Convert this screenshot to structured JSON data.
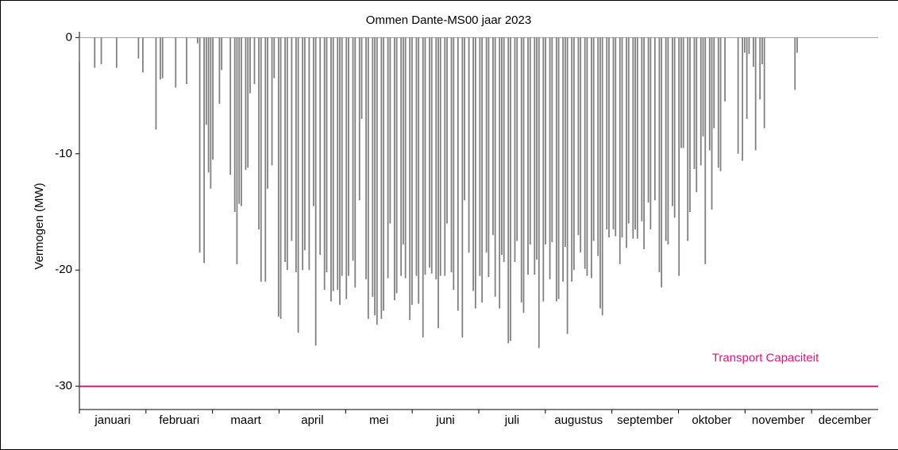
{
  "chart_data": {
    "type": "spikes",
    "title": "Ommen Dante-MS00 jaar 2023",
    "y_label": "Vermogen (MW)",
    "categories": [
      "januari",
      "februari",
      "maart",
      "april",
      "mei",
      "juni",
      "juli",
      "augustus",
      "september",
      "oktober",
      "november",
      "december"
    ],
    "xlim": [
      0,
      365
    ],
    "ylim": [
      -32,
      0.5
    ],
    "yticks": [
      -30,
      -20,
      -10,
      0
    ],
    "color": "#808080",
    "hline": {
      "value": -30,
      "label": "Transport Capaciteit",
      "color": "#e0137f"
    },
    "x": [
      0,
      7,
      10,
      17,
      27,
      29,
      35,
      37,
      38,
      44,
      49,
      54,
      55,
      57,
      58,
      59,
      60,
      61,
      64,
      65,
      69,
      71,
      72,
      73,
      74,
      76,
      77,
      78,
      80,
      82,
      83,
      85,
      86,
      88,
      89,
      91,
      92,
      94,
      95,
      97,
      99,
      100,
      102,
      103,
      105,
      107,
      108,
      110,
      112,
      113,
      115,
      116,
      118,
      119,
      120,
      122,
      123,
      125,
      126,
      128,
      129,
      131,
      132,
      134,
      135,
      136,
      138,
      139,
      141,
      142,
      144,
      145,
      147,
      148,
      149,
      151,
      152,
      154,
      155,
      157,
      158,
      160,
      161,
      163,
      164,
      165,
      167,
      168,
      170,
      171,
      173,
      175,
      176,
      178,
      180,
      181,
      183,
      184,
      186,
      187,
      189,
      190,
      192,
      193,
      194,
      196,
      197,
      199,
      200,
      202,
      203,
      205,
      206,
      208,
      209,
      210,
      212,
      213,
      215,
      216,
      218,
      219,
      221,
      222,
      223,
      225,
      226,
      228,
      229,
      231,
      232,
      234,
      235,
      237,
      238,
      239,
      241,
      242,
      244,
      245,
      247,
      248,
      250,
      251,
      253,
      254,
      255,
      257,
      258,
      260,
      261,
      263,
      265,
      266,
      268,
      269,
      271,
      272,
      274,
      275,
      276,
      278,
      279,
      281,
      282,
      284,
      285,
      286,
      288,
      289,
      290,
      292,
      293,
      295,
      301,
      303,
      304,
      305,
      306,
      308,
      309,
      311,
      312,
      313,
      327,
      328
    ],
    "values": [
      -2.1,
      -2.6,
      -2.3,
      -2.6,
      -1.8,
      -3,
      -7.9,
      -3.6,
      -3.5,
      -4.3,
      -4,
      -0.5,
      -18.5,
      -19.4,
      -7.5,
      -11.6,
      -13,
      -10.5,
      -5.7,
      -2.8,
      -11.8,
      -15,
      -19.5,
      -14.3,
      -14.5,
      -11.4,
      -11.2,
      -4.8,
      -4,
      -16.5,
      -21,
      -21,
      -13,
      -11,
      -3.5,
      -24,
      -24.2,
      -19.3,
      -20,
      -17.5,
      -20.2,
      -25.4,
      -20,
      -18.3,
      -20,
      -14.5,
      -26.5,
      -18.7,
      -21.7,
      -20.2,
      -22.7,
      -21.8,
      -21.7,
      -23,
      -20.5,
      -22.5,
      -20.5,
      -19.2,
      -21.5,
      -14,
      -7,
      -20.8,
      -24.2,
      -22.3,
      -23.9,
      -24.7,
      -24.2,
      -23.5,
      -20.7,
      -16,
      -22.6,
      -22,
      -20.5,
      -17.8,
      -20.7,
      -24.3,
      -23,
      -20.5,
      -22.9,
      -25.8,
      -20.4,
      -19.8,
      -20.3,
      -20.8,
      -25,
      -20.5,
      -20.5,
      -16,
      -20.2,
      -21.7,
      -23.5,
      -25.8,
      -14,
      -18.5,
      -21.8,
      -23.3,
      -20.5,
      -22.8,
      -18.5,
      -20.6,
      -17,
      -22.3,
      -23.3,
      -18.7,
      -19.3,
      -26.3,
      -26.1,
      -19.3,
      -17.5,
      -22.8,
      -23.7,
      -20.4,
      -17.8,
      -20.4,
      -19.1,
      -26.7,
      -22.7,
      -17.8,
      -20.8,
      -17.6,
      -22.7,
      -22.5,
      -21,
      -18,
      -25.5,
      -21,
      -20,
      -17,
      -18.5,
      -19.9,
      -20.5,
      -20.7,
      -17.5,
      -18.8,
      -23.3,
      -23.9,
      -16.5,
      -17.2,
      -16.5,
      -17.1,
      -19.5,
      -17.2,
      -18.1,
      -16,
      -17.3,
      -16.5,
      -17.3,
      -15.8,
      -18.2,
      -14.2,
      -16.5,
      -14,
      -20.2,
      -21.5,
      -17.5,
      -17.8,
      -14.5,
      -15.5,
      -20.5,
      -9.5,
      -9.5,
      -17.5,
      -15,
      -11.3,
      -13.3,
      -11,
      -8.5,
      -19.5,
      -9.7,
      -14.8,
      -7.8,
      -11.2,
      -11.5,
      -5.5,
      -10,
      -10.6,
      -1.3,
      -7,
      -1.4,
      -2.5,
      -9.7,
      -5.3,
      -2.3,
      -7.8,
      -4.5,
      -1.3
    ]
  }
}
